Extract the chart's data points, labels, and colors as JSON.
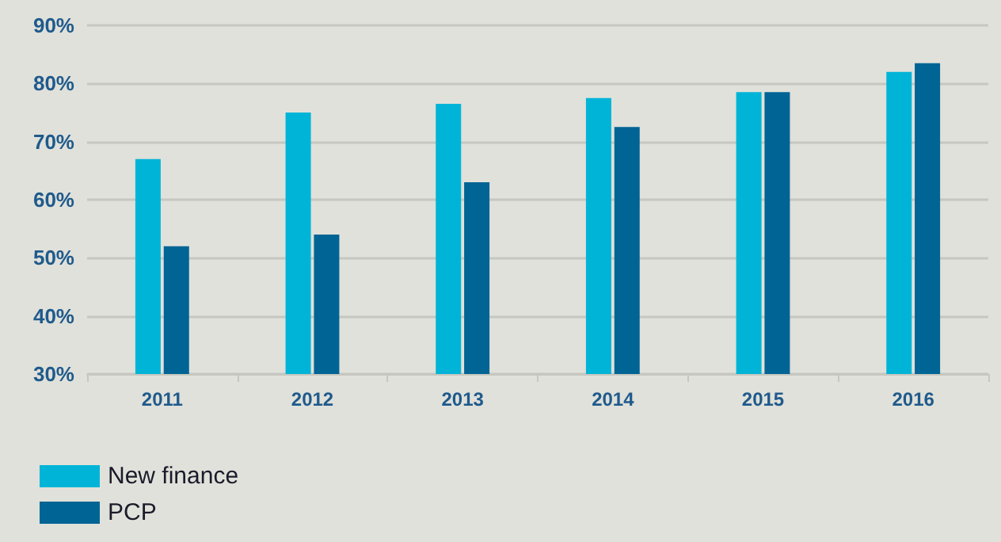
{
  "chart_data": {
    "type": "bar",
    "categories": [
      "2011",
      "2012",
      "2013",
      "2014",
      "2015",
      "2016"
    ],
    "series": [
      {
        "name": "New finance",
        "color": "#00b4d8",
        "values": [
          67,
          75,
          76.5,
          77.5,
          78.5,
          82
        ]
      },
      {
        "name": "PCP",
        "color": "#006495",
        "values": [
          52,
          54,
          63,
          72.5,
          78.5,
          83.5
        ]
      }
    ],
    "ylim": [
      30,
      90
    ],
    "yticks": [
      {
        "value": 30,
        "label": "30%"
      },
      {
        "value": 40,
        "label": "40%"
      },
      {
        "value": 50,
        "label": "50%"
      },
      {
        "value": 60,
        "label": "60%"
      },
      {
        "value": 70,
        "label": "70%"
      },
      {
        "value": 80,
        "label": "80%"
      },
      {
        "value": 90,
        "label": "90%"
      }
    ],
    "grid": "y",
    "legend": "bottom left"
  }
}
